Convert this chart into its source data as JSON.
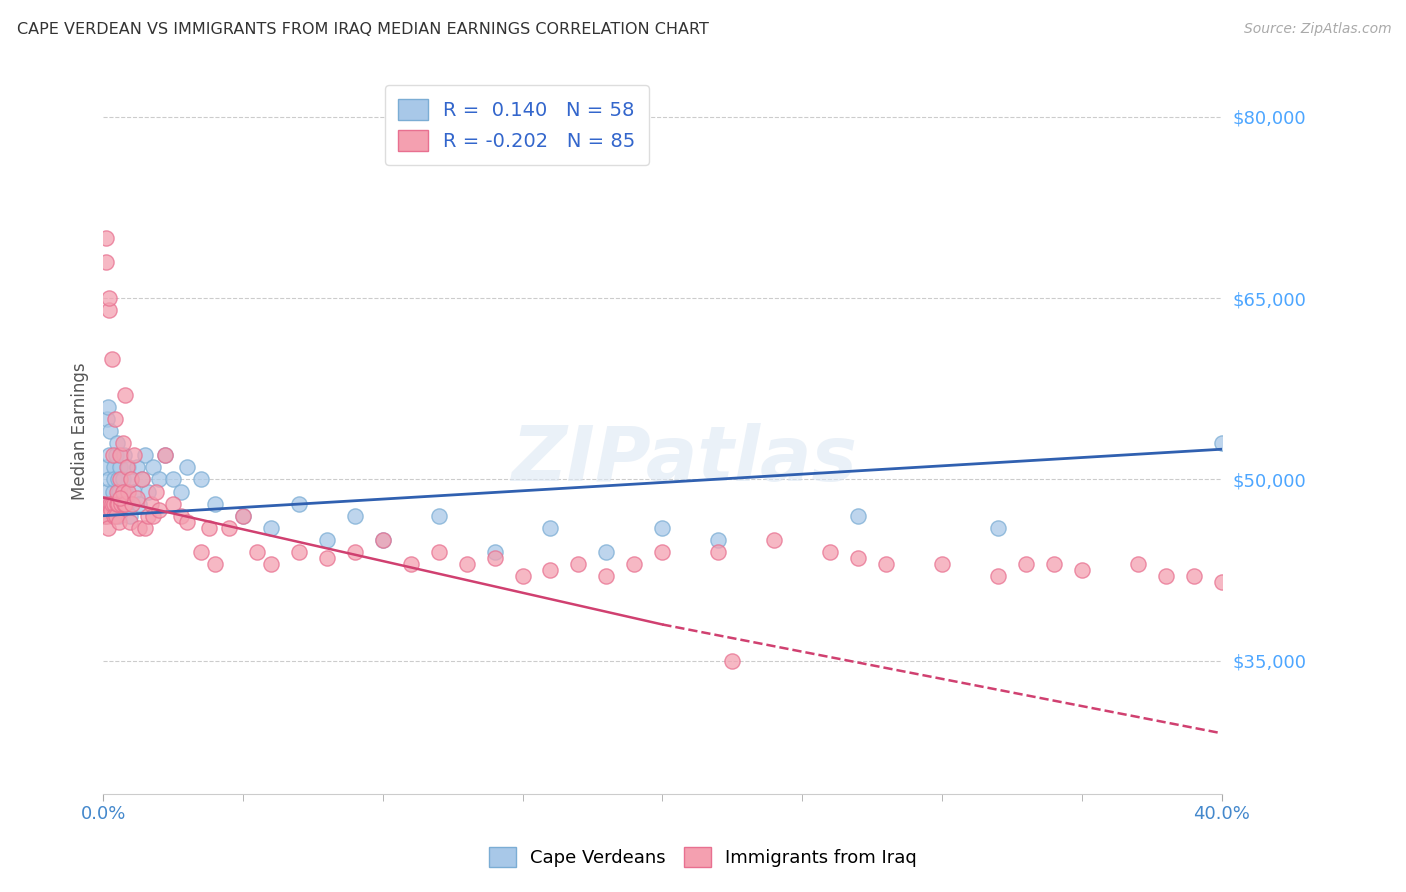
{
  "title": "CAPE VERDEAN VS IMMIGRANTS FROM IRAQ MEDIAN EARNINGS CORRELATION CHART",
  "source": "Source: ZipAtlas.com",
  "ylabel": "Median Earnings",
  "y_ticks": [
    35000,
    50000,
    65000,
    80000
  ],
  "y_tick_labels": [
    "$35,000",
    "$50,000",
    "$65,000",
    "$80,000"
  ],
  "x_min": 0.0,
  "x_max": 40.0,
  "y_min": 24000,
  "y_max": 84000,
  "blue_R": 0.14,
  "blue_N": 58,
  "pink_R": -0.202,
  "pink_N": 85,
  "blue_color": "#a8c8e8",
  "pink_color": "#f4a0b0",
  "blue_edge_color": "#7badd4",
  "pink_edge_color": "#e87090",
  "blue_line_color": "#3060b0",
  "pink_line_color": "#d04070",
  "legend_label_blue": "Cape Verdeans",
  "legend_label_pink": "Immigrants from Iraq",
  "blue_scatter_x": [
    0.05,
    0.08,
    0.1,
    0.12,
    0.15,
    0.18,
    0.2,
    0.22,
    0.25,
    0.28,
    0.3,
    0.35,
    0.38,
    0.4,
    0.42,
    0.45,
    0.5,
    0.52,
    0.55,
    0.58,
    0.6,
    0.65,
    0.7,
    0.75,
    0.8,
    0.85,
    0.9,
    0.95,
    1.0,
    1.1,
    1.2,
    1.3,
    1.4,
    1.5,
    1.6,
    1.8,
    2.0,
    2.2,
    2.5,
    2.8,
    3.0,
    3.5,
    4.0,
    5.0,
    6.0,
    7.0,
    8.0,
    9.0,
    10.0,
    12.0,
    14.0,
    16.0,
    18.0,
    20.0,
    22.0,
    27.0,
    32.0,
    40.0
  ],
  "blue_scatter_y": [
    48000,
    47000,
    49000,
    51000,
    55000,
    56000,
    50000,
    52000,
    54000,
    48000,
    47000,
    49000,
    51000,
    50000,
    48000,
    52000,
    53000,
    50000,
    49000,
    47000,
    51000,
    48000,
    50000,
    52000,
    49000,
    48000,
    51000,
    47000,
    50000,
    49000,
    51000,
    48000,
    50000,
    52000,
    49000,
    51000,
    50000,
    52000,
    50000,
    49000,
    51000,
    50000,
    48000,
    47000,
    46000,
    48000,
    45000,
    47000,
    45000,
    47000,
    44000,
    46000,
    44000,
    46000,
    45000,
    47000,
    46000,
    53000
  ],
  "pink_scatter_x": [
    0.05,
    0.08,
    0.1,
    0.12,
    0.15,
    0.18,
    0.2,
    0.22,
    0.25,
    0.28,
    0.3,
    0.32,
    0.35,
    0.38,
    0.4,
    0.42,
    0.45,
    0.48,
    0.5,
    0.52,
    0.55,
    0.6,
    0.62,
    0.65,
    0.7,
    0.72,
    0.75,
    0.78,
    0.8,
    0.85,
    0.9,
    0.95,
    1.0,
    1.05,
    1.1,
    1.2,
    1.3,
    1.4,
    1.5,
    1.6,
    1.7,
    1.8,
    1.9,
    2.0,
    2.2,
    2.5,
    2.8,
    3.0,
    3.5,
    4.0,
    4.5,
    5.0,
    5.5,
    6.0,
    7.0,
    8.0,
    9.0,
    10.0,
    11.0,
    12.0,
    13.0,
    14.0,
    15.0,
    16.0,
    17.0,
    18.0,
    19.0,
    20.0,
    22.0,
    24.0,
    26.0,
    27.0,
    28.0,
    30.0,
    32.0,
    33.0,
    34.0,
    35.0,
    37.0,
    38.0,
    39.0,
    40.0,
    22.5,
    3.8,
    0.6
  ],
  "pink_scatter_y": [
    47000,
    48000,
    70000,
    68000,
    47000,
    46000,
    64000,
    65000,
    48000,
    47500,
    48000,
    60000,
    52000,
    48000,
    47000,
    55000,
    47000,
    48000,
    49000,
    48000,
    46500,
    50000,
    52000,
    48000,
    53000,
    49000,
    48000,
    57000,
    48000,
    51000,
    49000,
    46500,
    50000,
    48000,
    52000,
    48500,
    46000,
    50000,
    46000,
    47000,
    48000,
    47000,
    49000,
    47500,
    52000,
    48000,
    47000,
    46500,
    44000,
    43000,
    46000,
    47000,
    44000,
    43000,
    44000,
    43500,
    44000,
    45000,
    43000,
    44000,
    43000,
    43500,
    42000,
    42500,
    43000,
    42000,
    43000,
    44000,
    44000,
    45000,
    44000,
    43500,
    43000,
    43000,
    42000,
    43000,
    43000,
    42500,
    43000,
    42000,
    42000,
    41500,
    35000,
    46000,
    48500
  ]
}
